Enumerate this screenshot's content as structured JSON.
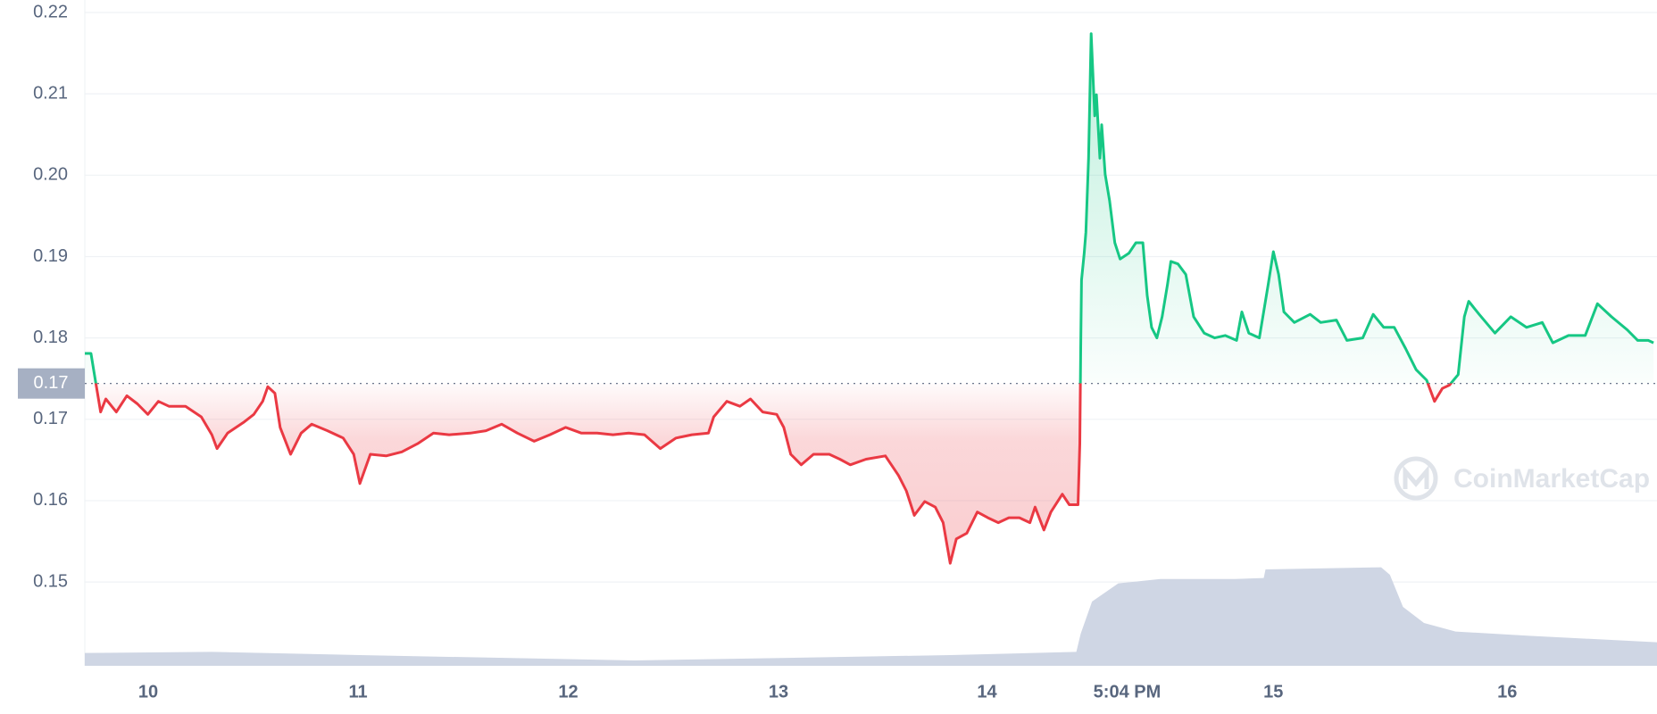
{
  "chart_data": {
    "type": "line",
    "x": [
      0.0,
      0.7,
      1.2,
      1.8,
      2.4,
      3.6,
      4.8,
      6.0,
      7.2,
      8.4,
      9.6,
      11.5,
      13.3,
      14.5,
      15.1,
      16.3,
      18.1,
      19.3,
      20.3,
      20.9,
      21.7,
      22.3,
      23.5,
      24.7,
      25.9,
      27.7,
      29.5,
      30.7,
      31.4,
      32.6,
      34.4,
      36.2,
      38.0,
      39.8,
      41.6,
      44.0,
      45.8,
      47.6,
      49.4,
      51.3,
      53.1,
      54.9,
      56.7,
      58.5,
      60.3,
      62.1,
      63.9,
      65.7,
      67.5,
      69.3,
      71.2,
      71.8,
      73.3,
      74.8,
      76.0,
      77.4,
      79.0,
      79.8,
      80.6,
      81.8,
      83.2,
      85.0,
      86.2,
      87.4,
      89.2,
      91.4,
      92.9,
      93.8,
      94.7,
      95.9,
      97.1,
      98.0,
      98.8,
      99.5,
      100.7,
      101.9,
      103.1,
      104.3,
      105.5,
      106.7,
      107.9,
      108.5,
      109.5,
      110.3,
      111.6,
      112.4,
      113.4,
      113.6,
      113.7,
      113.8,
      114.1,
      114.3,
      114.6,
      114.9,
      115.3,
      115.5,
      115.9,
      116.1,
      116.5,
      117.0,
      117.6,
      118.2,
      119.2,
      120.0,
      120.8,
      121.3,
      121.8,
      122.4,
      123.0,
      123.6,
      124.0,
      124.8,
      125.7,
      126.6,
      127.8,
      129.0,
      130.2,
      131.5,
      132.1,
      132.9,
      134.1,
      135.1,
      135.7,
      136.3,
      136.9,
      138.1,
      139.9,
      141.1,
      142.9,
      144.1,
      145.9,
      147.1,
      148.3,
      149.5,
      150.8,
      152.0,
      153.2,
      154.1,
      155.0,
      155.8,
      156.8,
      157.5,
      158.0,
      159.2,
      161.0,
      162.8,
      164.6,
      166.4,
      167.6,
      169.4,
      171.3,
      172.7,
      174.3,
      176.1,
      177.3,
      178.5,
      179.1
    ],
    "series": [
      {
        "values": [
          0.1781,
          0.1781,
          0.1748,
          0.1709,
          0.1725,
          0.1709,
          0.1729,
          0.1719,
          0.1706,
          0.1722,
          0.1716,
          0.1716,
          0.1703,
          0.1681,
          0.1664,
          0.1683,
          0.1696,
          0.1706,
          0.1722,
          0.174,
          0.1732,
          0.169,
          0.1657,
          0.1683,
          0.1694,
          0.1686,
          0.1677,
          0.1657,
          0.1621,
          0.1657,
          0.1655,
          0.166,
          0.167,
          0.1683,
          0.1681,
          0.1683,
          0.1686,
          0.1694,
          0.1683,
          0.1673,
          0.1681,
          0.169,
          0.1683,
          0.1683,
          0.1681,
          0.1683,
          0.1681,
          0.1664,
          0.1677,
          0.1681,
          0.1683,
          0.1703,
          0.1722,
          0.1716,
          0.1725,
          0.1709,
          0.1706,
          0.169,
          0.1657,
          0.1644,
          0.1657,
          0.1657,
          0.1651,
          0.1644,
          0.1651,
          0.1655,
          0.1631,
          0.1612,
          0.1582,
          0.1599,
          0.1592,
          0.1573,
          0.1523,
          0.1553,
          0.156,
          0.1586,
          0.1579,
          0.1573,
          0.1579,
          0.1579,
          0.1573,
          0.1592,
          0.1564,
          0.1586,
          0.1608,
          0.1595,
          0.1595,
          0.167,
          0.1787,
          0.1871,
          0.1904,
          0.193,
          0.2021,
          0.2174,
          0.2073,
          0.2099,
          0.2021,
          0.2062,
          0.2001,
          0.1969,
          0.1917,
          0.1897,
          0.1904,
          0.1917,
          0.1917,
          0.1852,
          0.1813,
          0.18,
          0.1826,
          0.1865,
          0.1894,
          0.1891,
          0.1878,
          0.1826,
          0.1806,
          0.18,
          0.1803,
          0.1797,
          0.1832,
          0.1806,
          0.18,
          0.1865,
          0.1906,
          0.1878,
          0.1832,
          0.1819,
          0.1829,
          0.1819,
          0.1822,
          0.1797,
          0.18,
          0.1829,
          0.1813,
          0.1813,
          0.1787,
          0.1761,
          0.1748,
          0.1722,
          0.1738,
          0.1742,
          0.1755,
          0.1826,
          0.1845,
          0.1829,
          0.1806,
          0.1826,
          0.1813,
          0.1819,
          0.1794,
          0.1803,
          0.1803,
          0.1842,
          0.1826,
          0.181,
          0.1797,
          0.1797,
          0.1794
        ],
        "colors": {
          "up": "#16c784",
          "down": "#ea3943"
        }
      }
    ],
    "reference": {
      "value": 0.1744,
      "label": "0.17"
    },
    "volume": {
      "x": [
        0.0,
        14.5,
        31.4,
        62.7,
        98.8,
        113.2,
        113.7,
        115.0,
        118.0,
        122.8,
        131.3,
        134.6,
        134.8,
        148.0,
        149.0,
        150.5,
        152.9,
        156.5,
        164.9,
        179.5
      ],
      "values": [
        12,
        13,
        10,
        5,
        10,
        13,
        30,
        60,
        77,
        81,
        81,
        82,
        90,
        92,
        85,
        55,
        40,
        32,
        28,
        22
      ],
      "vlim": [
        0,
        100
      ],
      "color": "#cfd6e4"
    },
    "xlim": [
      0,
      179.5
    ],
    "xticks": [
      {
        "value": 7.24,
        "label": "10"
      },
      {
        "value": 31.2,
        "label": "11"
      },
      {
        "value": 55.2,
        "label": "12"
      },
      {
        "value": 79.2,
        "label": "13"
      },
      {
        "value": 103.0,
        "label": "14"
      },
      {
        "value": 119.0,
        "label": "5:04 PM"
      },
      {
        "value": 135.7,
        "label": "15"
      },
      {
        "value": 162.4,
        "label": "16"
      }
    ],
    "ylim": [
      0.1397,
      0.22
    ],
    "yticks": [
      0.15,
      0.16,
      0.17,
      0.18,
      0.19,
      {
        "value": 0.2,
        "label": "0.20"
      },
      0.21,
      0.22
    ],
    "grid": true,
    "watermark": "CoinMarketCap"
  }
}
